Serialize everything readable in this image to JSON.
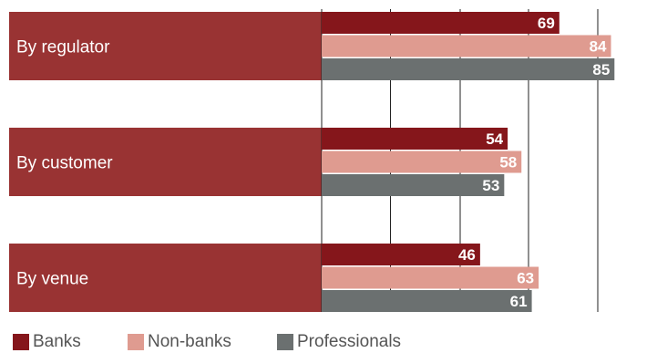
{
  "chart_data": {
    "type": "bar",
    "orientation": "horizontal",
    "categories": [
      "By regulator",
      "By customer",
      "By venue"
    ],
    "series": [
      {
        "name": "Banks",
        "color": "#85161b",
        "values": [
          69,
          54,
          46
        ]
      },
      {
        "name": "Non-banks",
        "color": "#df9b90",
        "values": [
          84,
          58,
          63
        ]
      },
      {
        "name": "Professionals",
        "color": "#6b7070",
        "values": [
          85,
          53,
          61
        ]
      }
    ],
    "category_band_color": "#993333",
    "grid": true,
    "legend_position": "bottom-left",
    "title": "",
    "xlabel": "",
    "ylabel": ""
  },
  "legend": {
    "items": [
      "Banks",
      "Non-banks",
      "Professionals"
    ]
  }
}
